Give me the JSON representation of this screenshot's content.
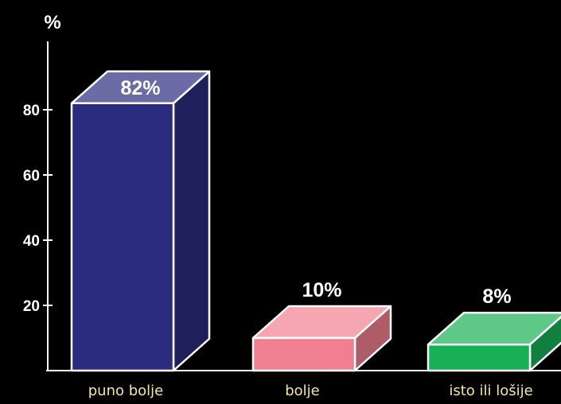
{
  "chart_data": {
    "type": "bar",
    "ylabel": "%",
    "ylim": [
      0,
      90
    ],
    "yticks": [
      20,
      40,
      60,
      80
    ],
    "categories": [
      "puno bolje",
      "bolje",
      "isto ili lošije"
    ],
    "values": [
      82,
      10,
      8
    ],
    "value_labels": [
      "82%",
      "10%",
      "8%"
    ],
    "colors": [
      "#2b2b80",
      "#f08090",
      "#18b055"
    ],
    "style": "3d",
    "background": "#000000",
    "grid": false
  }
}
